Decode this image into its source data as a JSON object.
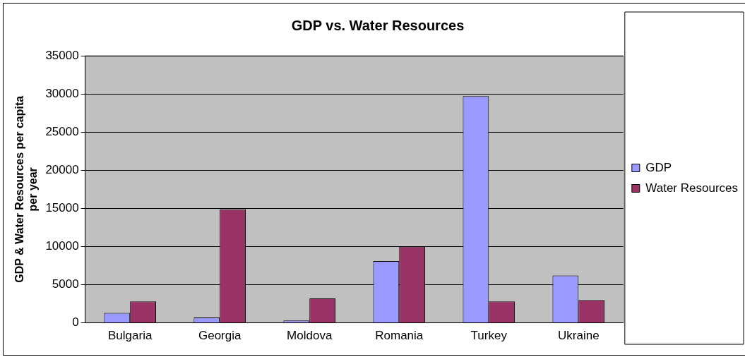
{
  "chart_data": {
    "type": "bar",
    "title": "GDP vs. Water Resources",
    "ylabel": "GDP & Water Resources per capita per year",
    "categories": [
      "Bulgaria",
      "Georgia",
      "Moldova",
      "Romania",
      "Turkey",
      "Ukraine"
    ],
    "series": [
      {
        "name": "GDP",
        "color": "#9999ff",
        "values": [
          1300,
          700,
          300,
          8100,
          29700,
          6200
        ]
      },
      {
        "name": "Water Resources",
        "color": "#993366",
        "values": [
          2800,
          14900,
          3200,
          10000,
          2800,
          3000
        ]
      }
    ],
    "ylim": [
      0,
      35000
    ],
    "yticks": [
      0,
      5000,
      10000,
      15000,
      20000,
      25000,
      30000,
      35000
    ],
    "grid": "y",
    "legend": "right"
  }
}
